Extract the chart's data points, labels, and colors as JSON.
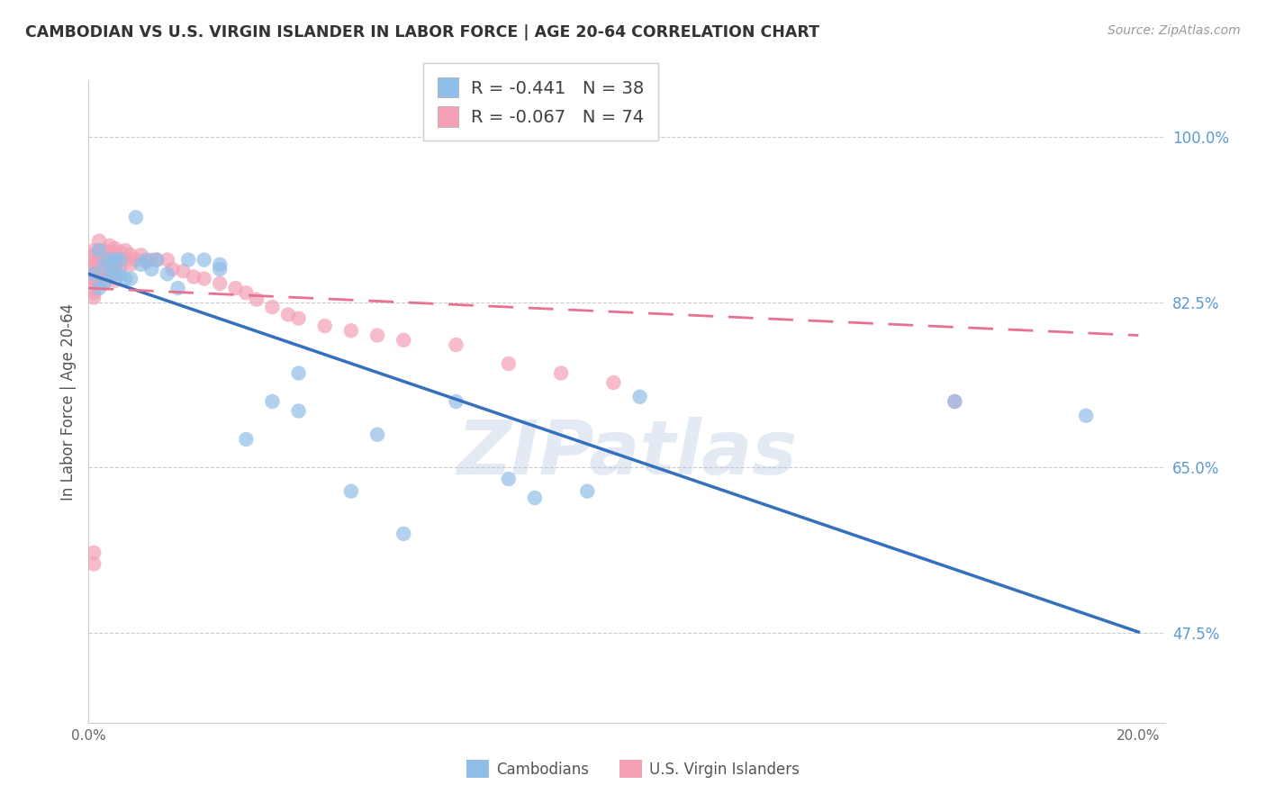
{
  "title": "CAMBODIAN VS U.S. VIRGIN ISLANDER IN LABOR FORCE | AGE 20-64 CORRELATION CHART",
  "source": "Source: ZipAtlas.com",
  "ylabel": "In Labor Force | Age 20-64",
  "xlim": [
    0.0,
    0.205
  ],
  "ylim": [
    0.38,
    1.06
  ],
  "yticks": [
    0.475,
    0.65,
    0.825,
    1.0
  ],
  "ytick_labels": [
    "47.5%",
    "65.0%",
    "82.5%",
    "100.0%"
  ],
  "xticks": [
    0.0,
    0.025,
    0.05,
    0.075,
    0.1,
    0.125,
    0.15,
    0.175,
    0.2
  ],
  "xtick_labels": [
    "0.0%",
    "",
    "",
    "",
    "",
    "",
    "",
    "",
    "20.0%"
  ],
  "R_cambodian": -0.441,
  "N_cambodian": 38,
  "R_usvi": -0.067,
  "N_usvi": 74,
  "legend_labels": [
    "Cambodians",
    "U.S. Virgin Islanders"
  ],
  "dot_color_blue": "#90BEE8",
  "dot_color_pink": "#F4A0B5",
  "line_color_blue": "#3570BC",
  "line_color_pink": "#E87090",
  "ytick_color": "#5B9BD5",
  "grid_color": "#CCCCCC",
  "watermark": "ZIPatlas",
  "blue_line_x": [
    0.0,
    0.2
  ],
  "blue_line_y": [
    0.855,
    0.476
  ],
  "pink_line_x": [
    0.0,
    0.2
  ],
  "pink_line_y": [
    0.84,
    0.79
  ],
  "blue_dots_x": [
    0.001,
    0.002,
    0.002,
    0.003,
    0.003,
    0.004,
    0.004,
    0.005,
    0.005,
    0.006,
    0.006,
    0.007,
    0.008,
    0.009,
    0.01,
    0.011,
    0.012,
    0.013,
    0.015,
    0.017,
    0.019,
    0.022,
    0.025,
    0.03,
    0.035,
    0.04,
    0.05,
    0.06,
    0.08,
    0.095,
    0.105,
    0.025,
    0.04,
    0.055,
    0.07,
    0.085,
    0.165,
    0.19
  ],
  "blue_dots_y": [
    0.855,
    0.88,
    0.84,
    0.865,
    0.845,
    0.87,
    0.855,
    0.87,
    0.855,
    0.87,
    0.855,
    0.85,
    0.85,
    0.915,
    0.865,
    0.87,
    0.86,
    0.87,
    0.855,
    0.84,
    0.87,
    0.87,
    0.865,
    0.68,
    0.72,
    0.71,
    0.625,
    0.58,
    0.638,
    0.625,
    0.725,
    0.86,
    0.75,
    0.685,
    0.72,
    0.618,
    0.72,
    0.705
  ],
  "pink_dots_x": [
    0.001,
    0.001,
    0.001,
    0.001,
    0.001,
    0.001,
    0.001,
    0.001,
    0.001,
    0.001,
    0.001,
    0.002,
    0.002,
    0.002,
    0.002,
    0.002,
    0.002,
    0.002,
    0.002,
    0.002,
    0.003,
    0.003,
    0.003,
    0.003,
    0.003,
    0.003,
    0.003,
    0.003,
    0.004,
    0.004,
    0.004,
    0.004,
    0.004,
    0.005,
    0.005,
    0.005,
    0.005,
    0.005,
    0.005,
    0.006,
    0.006,
    0.006,
    0.007,
    0.007,
    0.008,
    0.008,
    0.009,
    0.01,
    0.011,
    0.012,
    0.013,
    0.015,
    0.016,
    0.018,
    0.02,
    0.022,
    0.025,
    0.028,
    0.03,
    0.032,
    0.035,
    0.038,
    0.04,
    0.045,
    0.05,
    0.055,
    0.06,
    0.07,
    0.08,
    0.09,
    0.1,
    0.165,
    0.001,
    0.001
  ],
  "pink_dots_y": [
    0.88,
    0.875,
    0.87,
    0.865,
    0.86,
    0.855,
    0.85,
    0.845,
    0.84,
    0.835,
    0.83,
    0.89,
    0.88,
    0.875,
    0.87,
    0.865,
    0.86,
    0.855,
    0.85,
    0.845,
    0.88,
    0.875,
    0.87,
    0.865,
    0.86,
    0.855,
    0.85,
    0.845,
    0.885,
    0.878,
    0.87,
    0.862,
    0.855,
    0.882,
    0.876,
    0.87,
    0.862,
    0.855,
    0.848,
    0.878,
    0.87,
    0.862,
    0.88,
    0.87,
    0.875,
    0.865,
    0.87,
    0.875,
    0.868,
    0.87,
    0.87,
    0.87,
    0.86,
    0.858,
    0.852,
    0.85,
    0.845,
    0.84,
    0.835,
    0.828,
    0.82,
    0.812,
    0.808,
    0.8,
    0.795,
    0.79,
    0.785,
    0.78,
    0.76,
    0.75,
    0.74,
    0.72,
    0.56,
    0.548
  ]
}
